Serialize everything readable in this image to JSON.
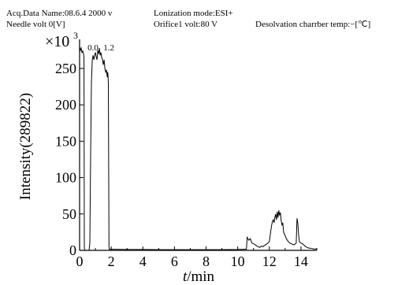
{
  "header": {
    "acq_data_name": "Acq.Data Name:08.6.4 2000 v",
    "ionization_mode": "Lonization mode:ESI+",
    "needle_volt": "Needle volt 0[V]",
    "orifice_volt": "Orifice1 volt:80 V",
    "desolvation_temp": "Desolvation charrber temp:−[℃]"
  },
  "chart_data": {
    "type": "line",
    "xlabel": "t/min",
    "xlabel_italic": "t",
    "xlabel_rest": "/min",
    "ylabel": "Intensity(289822)",
    "multiplier": "×10",
    "multiplier_exp": "3",
    "xlim": [
      0,
      15
    ],
    "ylim": [
      0,
      290
    ],
    "x_ticks": [
      0,
      2,
      4,
      6,
      8,
      10,
      12,
      14
    ],
    "y_ticks": [
      0,
      50,
      100,
      150,
      200,
      250
    ],
    "annotations": [
      {
        "text": "0.0",
        "x": 0.85
      },
      {
        "text": "1.2",
        "x": 1.85
      }
    ],
    "grid": false,
    "series": [
      {
        "points": [
          [
            0.0,
            280
          ],
          [
            0.05,
            275
          ],
          [
            0.1,
            278
          ],
          [
            0.15,
            272
          ],
          [
            0.2,
            274
          ],
          [
            0.25,
            270
          ],
          [
            0.28,
            265
          ],
          [
            0.3,
            5
          ],
          [
            0.32,
            0
          ],
          [
            0.45,
            0
          ],
          [
            0.5,
            0
          ],
          [
            0.55,
            0
          ],
          [
            0.6,
            0
          ],
          [
            0.65,
            10
          ],
          [
            0.7,
            130
          ],
          [
            0.75,
            230
          ],
          [
            0.8,
            262
          ],
          [
            0.85,
            268
          ],
          [
            0.9,
            262
          ],
          [
            0.95,
            268
          ],
          [
            1.0,
            272
          ],
          [
            1.05,
            266
          ],
          [
            1.1,
            262
          ],
          [
            1.15,
            275
          ],
          [
            1.2,
            270
          ],
          [
            1.25,
            278
          ],
          [
            1.3,
            268
          ],
          [
            1.35,
            272
          ],
          [
            1.4,
            265
          ],
          [
            1.45,
            262
          ],
          [
            1.5,
            255
          ],
          [
            1.55,
            262
          ],
          [
            1.6,
            250
          ],
          [
            1.65,
            245
          ],
          [
            1.7,
            248
          ],
          [
            1.75,
            238
          ],
          [
            1.78,
            245
          ],
          [
            1.8,
            240
          ],
          [
            1.82,
            230
          ],
          [
            1.84,
            120
          ],
          [
            1.86,
            5
          ],
          [
            1.88,
            1.5
          ],
          [
            2.0,
            1.5
          ],
          [
            3.0,
            1.2
          ],
          [
            4.0,
            1.2
          ],
          [
            5.0,
            1.0
          ],
          [
            6.0,
            1.0
          ],
          [
            7.0,
            1.0
          ],
          [
            8.0,
            1.0
          ],
          [
            9.0,
            1.0
          ],
          [
            10.0,
            1.2
          ],
          [
            10.4,
            1.5
          ],
          [
            10.55,
            1.5
          ],
          [
            10.6,
            18
          ],
          [
            10.7,
            14
          ],
          [
            10.8,
            16
          ],
          [
            10.9,
            10
          ],
          [
            11.0,
            9
          ],
          [
            11.1,
            8
          ],
          [
            11.2,
            6
          ],
          [
            11.3,
            5
          ],
          [
            11.4,
            4
          ],
          [
            11.5,
            6
          ],
          [
            11.6,
            5
          ],
          [
            11.7,
            7
          ],
          [
            11.8,
            8
          ],
          [
            11.9,
            10
          ],
          [
            12.0,
            12
          ],
          [
            12.05,
            20
          ],
          [
            12.1,
            28
          ],
          [
            12.15,
            35
          ],
          [
            12.2,
            40
          ],
          [
            12.25,
            42
          ],
          [
            12.3,
            38
          ],
          [
            12.35,
            45
          ],
          [
            12.4,
            50
          ],
          [
            12.45,
            42
          ],
          [
            12.5,
            53
          ],
          [
            12.55,
            45
          ],
          [
            12.6,
            55
          ],
          [
            12.65,
            48
          ],
          [
            12.7,
            52
          ],
          [
            12.75,
            40
          ],
          [
            12.8,
            35
          ],
          [
            12.85,
            38
          ],
          [
            12.9,
            25
          ],
          [
            13.0,
            20
          ],
          [
            13.1,
            15
          ],
          [
            13.2,
            12
          ],
          [
            13.3,
            10
          ],
          [
            13.4,
            9
          ],
          [
            13.5,
            8
          ],
          [
            13.6,
            8
          ],
          [
            13.7,
            10
          ],
          [
            13.75,
            44
          ],
          [
            13.8,
            38
          ],
          [
            13.85,
            22
          ],
          [
            13.9,
            12
          ],
          [
            14.0,
            10
          ],
          [
            14.1,
            9
          ],
          [
            14.2,
            7
          ],
          [
            14.3,
            5
          ],
          [
            14.4,
            4
          ],
          [
            14.5,
            3
          ],
          [
            14.6,
            3
          ],
          [
            14.7,
            2.5
          ],
          [
            14.8,
            2
          ],
          [
            15.0,
            2
          ]
        ]
      }
    ]
  }
}
